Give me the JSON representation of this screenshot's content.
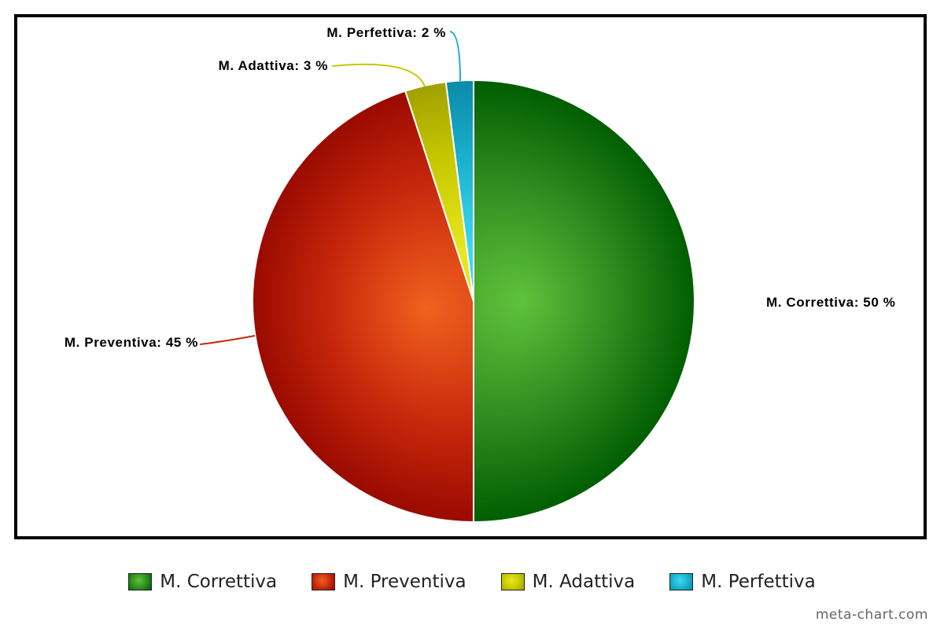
{
  "chart_data": {
    "type": "pie",
    "categories": [
      "M. Correttiva",
      "M. Preventiva",
      "M. Adattiva",
      "M. Perfettiva"
    ],
    "values": [
      50,
      45,
      3,
      2
    ],
    "unit": "%",
    "data_labels": [
      "M. Correttiva: 50 %",
      "M. Preventiva: 45 %",
      "M. Adattiva: 3 %",
      "M. Perfettiva: 2 %"
    ],
    "colors": [
      "#2e8b1f",
      "#c8280c",
      "#c8c800",
      "#1ab0cc"
    ],
    "highlight_colors": [
      "#5ec23a",
      "#f0621e",
      "#e8e820",
      "#40d8f0"
    ],
    "dark_colors": [
      "#005e00",
      "#9a0a00",
      "#a0a000",
      "#0a8aa8"
    ],
    "start_angle_deg": 0,
    "direction": "clockwise",
    "legend_position": "bottom"
  },
  "watermark": "meta-chart.com"
}
